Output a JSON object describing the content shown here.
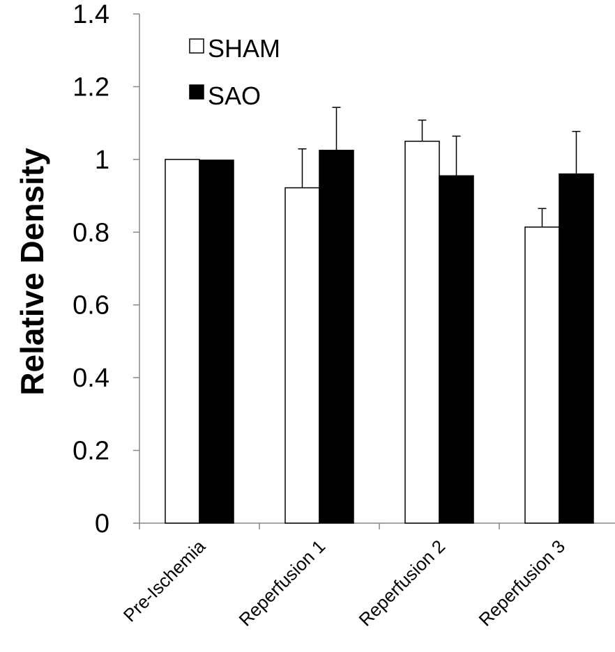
{
  "chart_data": {
    "type": "bar",
    "categories": [
      "Pre-Ischemia",
      "Reperfusion 1",
      "Reperfusion 2",
      "Reperfusion 3"
    ],
    "series": [
      {
        "name": "SHAM",
        "color": "#ffffff",
        "values": [
          1.0,
          0.922,
          1.05,
          0.814
        ],
        "errors": [
          0.0,
          0.107,
          0.058,
          0.051
        ]
      },
      {
        "name": "SAO",
        "color": "#000000",
        "values": [
          0.998,
          1.025,
          0.955,
          0.96
        ],
        "errors": [
          0.002,
          0.118,
          0.109,
          0.117
        ]
      }
    ],
    "ylabel": "Relative Density",
    "xlabel": "",
    "title": "",
    "ylim": [
      0,
      1.4
    ],
    "yticks": [
      "0",
      "0.2",
      "0.4",
      "0.6",
      "0.8",
      "1",
      "1.2",
      "1.4"
    ],
    "grid": false,
    "legend_position": "top-left"
  }
}
